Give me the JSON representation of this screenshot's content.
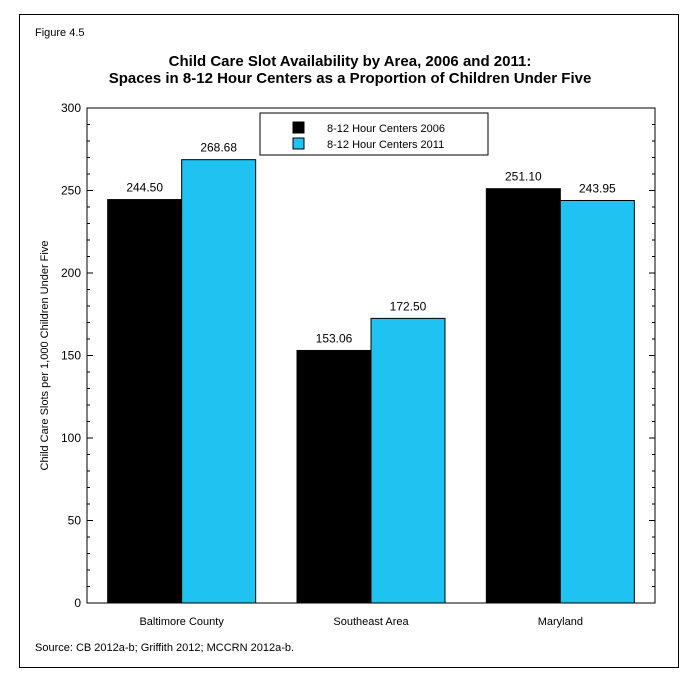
{
  "figure_label": "Figure 4.5",
  "source": "Source: CB 2012a-b; Griffith 2012; MCCRN 2012a-b.",
  "colors": {
    "series_2006": "#000000",
    "series_2011": "#1ec3f2"
  },
  "chart_data": {
    "type": "bar",
    "title": "Child Care Slot Availability by Area, 2006 and 2011:",
    "subtitle": "Spaces in 8-12 Hour Centers as a Proportion of Children Under Five",
    "xlabel": "",
    "ylabel": "Child Care Slots per 1,000 Children Under Five",
    "ylim": [
      0,
      300
    ],
    "yticks": [
      0,
      50,
      100,
      150,
      200,
      250,
      300
    ],
    "grid": false,
    "legend_position": "top-center",
    "categories": [
      "Baltimore County",
      "Southeast Area",
      "Maryland"
    ],
    "series": [
      {
        "name": "8-12 Hour Centers 2006",
        "values": [
          244.5,
          153.06,
          251.1
        ],
        "labels": [
          "244.50",
          "153.06",
          "251.10"
        ]
      },
      {
        "name": "8-12 Hour Centers 2011",
        "values": [
          268.68,
          172.5,
          243.95
        ],
        "labels": [
          "268.68",
          "172.50",
          "243.95"
        ]
      }
    ]
  }
}
